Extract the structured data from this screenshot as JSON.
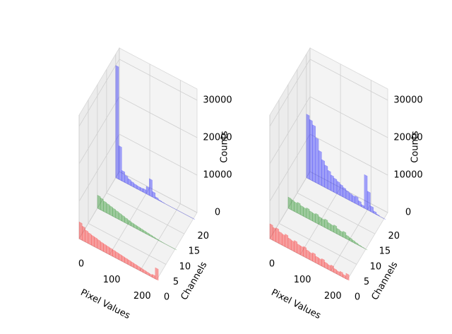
{
  "chart_data": [
    {
      "type": "bar3d",
      "xlabel": "Pixel Values",
      "ylabel": "Channels",
      "zlabel": "Counts",
      "x": [
        0,
        10,
        20,
        30,
        40,
        50,
        60,
        70,
        80,
        90,
        100,
        110,
        120,
        130,
        140,
        150,
        160,
        170,
        180,
        190,
        200,
        210,
        220,
        230,
        240,
        250
      ],
      "bin_width": 10,
      "xlim": [
        0,
        255
      ],
      "ylim": [
        0,
        22
      ],
      "zlim": [
        0,
        33000
      ],
      "xticks": [
        0,
        100,
        200
      ],
      "yticks": [
        0,
        5,
        10,
        15,
        20
      ],
      "zticks": [
        0,
        10000,
        20000,
        30000
      ],
      "series": [
        {
          "name": "red",
          "color": "red",
          "y": 0,
          "values": [
            4500,
            3800,
            3200,
            2900,
            2700,
            2600,
            2400,
            2200,
            2100,
            2000,
            1900,
            1800,
            1700,
            1600,
            1500,
            1400,
            1300,
            1200,
            1100,
            1000,
            900,
            800,
            700,
            600,
            800,
            3000
          ]
        },
        {
          "name": "green",
          "color": "green",
          "y": 10,
          "values": [
            3500,
            3200,
            2800,
            2600,
            2400,
            2200,
            2000,
            1800,
            1600,
            1400,
            1200,
            1000,
            900,
            800,
            700,
            600,
            500,
            400,
            300,
            200,
            100,
            50,
            0,
            0,
            0,
            0
          ]
        },
        {
          "name": "blue",
          "color": "blue",
          "y": 20,
          "values": [
            30000,
            9000,
            2800,
            2000,
            1500,
            1200,
            1000,
            900,
            900,
            1000,
            2000,
            4500,
            1500,
            500,
            200,
            100,
            0,
            0,
            0,
            0,
            0,
            0,
            0,
            0,
            0,
            0
          ]
        }
      ]
    },
    {
      "type": "bar3d",
      "xlabel": "Pixel Values",
      "ylabel": "Channels",
      "zlabel": "Counts",
      "x": [
        0,
        10,
        20,
        30,
        40,
        50,
        60,
        70,
        80,
        90,
        100,
        110,
        120,
        130,
        140,
        150,
        160,
        170,
        180,
        190,
        200,
        210,
        220,
        230,
        240,
        250
      ],
      "bin_width": 10,
      "xlim": [
        0,
        255
      ],
      "ylim": [
        0,
        22
      ],
      "zlim": [
        0,
        33000
      ],
      "xticks": [
        0,
        100,
        200
      ],
      "yticks": [
        0,
        5,
        10,
        15,
        20
      ],
      "zticks": [
        0,
        10000,
        20000,
        30000
      ],
      "series": [
        {
          "name": "red",
          "color": "red",
          "y": 0,
          "values": [
            4000,
            3500,
            3800,
            3200,
            3000,
            3400,
            2800,
            2600,
            3000,
            2500,
            2400,
            2700,
            2200,
            2000,
            2300,
            1800,
            1700,
            2000,
            1500,
            1300,
            1600,
            1100,
            900,
            1200,
            800,
            1500
          ]
        },
        {
          "name": "green",
          "color": "green",
          "y": 10,
          "values": [
            3000,
            2800,
            2600,
            2900,
            2500,
            2400,
            2700,
            2300,
            2200,
            2500,
            2100,
            2000,
            2300,
            1800,
            1700,
            2000,
            1500,
            1300,
            1600,
            1000,
            800,
            600,
            400,
            200,
            100,
            0
          ]
        },
        {
          "name": "blue",
          "color": "blue",
          "y": 20,
          "values": [
            17000,
            16000,
            15000,
            12000,
            9000,
            7000,
            6000,
            5000,
            4200,
            3800,
            3400,
            3000,
            2600,
            2200,
            2000,
            1800,
            2000,
            1200,
            600,
            9000,
            5000,
            1500,
            600,
            200,
            0,
            0
          ]
        }
      ]
    }
  ]
}
